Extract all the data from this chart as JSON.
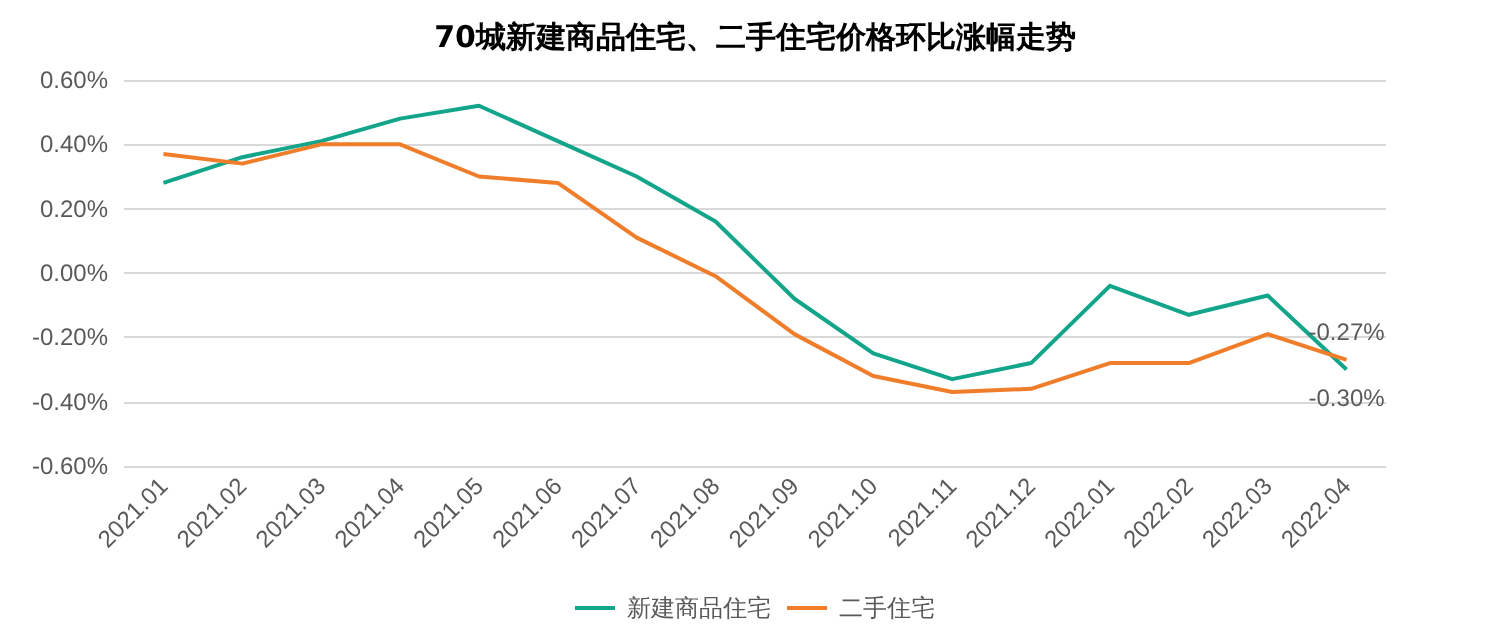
{
  "chart_data": {
    "type": "line",
    "title": "70城新建商品住宅、二手住宅价格环比涨幅走势",
    "categories": [
      "2021.01",
      "2021.02",
      "2021.03",
      "2021.04",
      "2021.05",
      "2021.06",
      "2021.07",
      "2021.08",
      "2021.09",
      "2021.10",
      "2021.11",
      "2021.12",
      "2022.01",
      "2022.02",
      "2022.03",
      "2022.04"
    ],
    "series": [
      {
        "name": "新建商品住宅",
        "color": "#13a58a",
        "values": [
          0.28,
          0.36,
          0.41,
          0.48,
          0.52,
          0.41,
          0.3,
          0.16,
          -0.08,
          -0.25,
          -0.33,
          -0.28,
          -0.04,
          -0.13,
          -0.07,
          -0.3
        ],
        "value_labels": [
          null,
          null,
          null,
          null,
          null,
          null,
          null,
          null,
          null,
          null,
          null,
          null,
          null,
          null,
          null,
          "-0.30%"
        ]
      },
      {
        "name": "二手住宅",
        "color": "#f07d2a",
        "values": [
          0.37,
          0.34,
          0.4,
          0.4,
          0.3,
          0.28,
          0.11,
          -0.01,
          -0.19,
          -0.32,
          -0.37,
          -0.36,
          -0.28,
          -0.28,
          -0.19,
          -0.27
        ],
        "value_labels": [
          null,
          null,
          null,
          null,
          null,
          null,
          null,
          null,
          null,
          null,
          null,
          null,
          null,
          null,
          null,
          "-0.27%"
        ]
      }
    ],
    "ylim": [
      -0.6,
      0.6
    ],
    "yticks": [
      {
        "value": -0.6,
        "label": "-0.60%"
      },
      {
        "value": -0.4,
        "label": "-0.40%"
      },
      {
        "value": -0.2,
        "label": "-0.20%"
      },
      {
        "value": 0,
        "label": "0.00%"
      },
      {
        "value": 0.2,
        "label": "0.20%"
      },
      {
        "value": 0.4,
        "label": "0.40%"
      },
      {
        "value": 0.6,
        "label": "0.60%"
      }
    ],
    "grid": "y",
    "legend": "bottom",
    "marker": "none",
    "line_style": "solid"
  }
}
